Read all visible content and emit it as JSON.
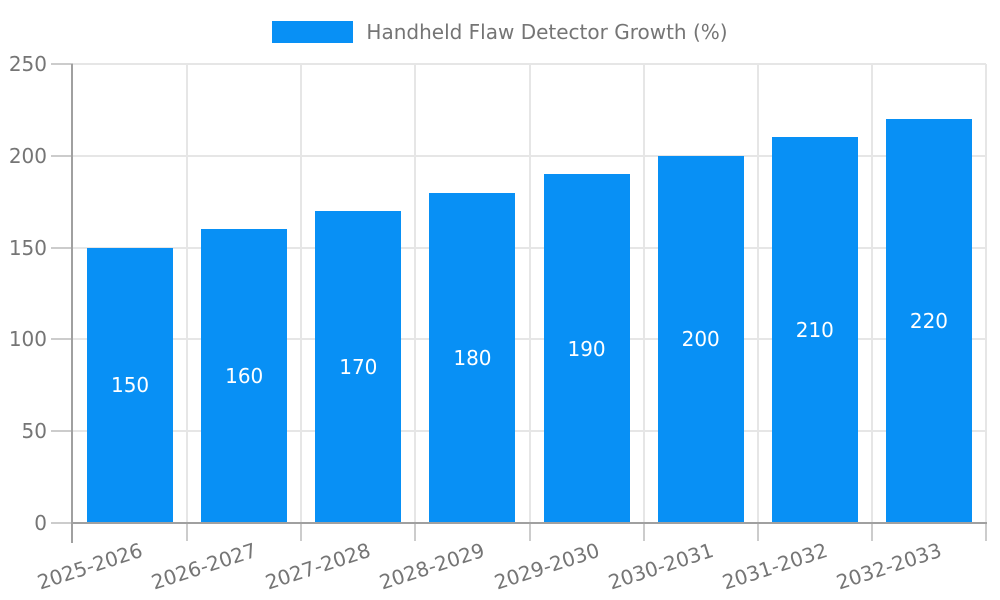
{
  "chart_data": {
    "type": "bar",
    "legend_label": "Handheld Flaw Detector Growth (%)",
    "legend_position": "top",
    "categories": [
      "2025-2026",
      "2026-2027",
      "2027-2028",
      "2028-2029",
      "2029-2030",
      "2030-2031",
      "2031-2032",
      "2032-2033"
    ],
    "values": [
      150,
      160,
      170,
      180,
      190,
      200,
      210,
      220
    ],
    "xlabel": "",
    "ylabel": "",
    "ylim": [
      0,
      250
    ],
    "yticks": [
      0,
      50,
      100,
      150,
      200,
      250
    ],
    "grid": true,
    "data_label_position": "inside-center",
    "x_label_rotation_deg": -18,
    "colors": {
      "bar": "#0890f5",
      "data_label": "#ffffff",
      "tick_label": "#757575",
      "legend_label": "#757575",
      "gridline": "#e6e6e6",
      "tick_mark": "#cccccc",
      "axis": "#a0a0a0",
      "background": "#ffffff"
    }
  }
}
